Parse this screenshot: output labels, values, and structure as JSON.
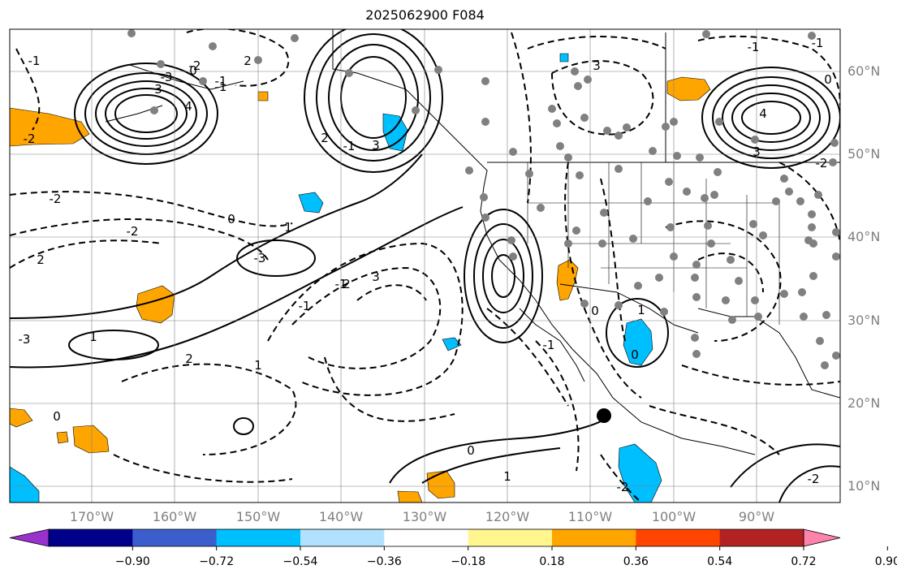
{
  "title": "2025062900 F084",
  "map": {
    "lon_range": [
      -180,
      -80
    ],
    "lat_range": [
      8,
      65
    ],
    "lon_labels": [
      "170°W",
      "160°W",
      "150°W",
      "140°W",
      "130°W",
      "120°W",
      "110°W",
      "100°W",
      "90°W"
    ],
    "lat_labels": [
      "60°N",
      "50°N",
      "40°N",
      "30°N",
      "20°N",
      "10°N"
    ],
    "contour_labels": [
      "3",
      "4",
      "0",
      "-1",
      "2",
      "-1",
      "2",
      "3",
      "1",
      "0",
      "-2",
      "2",
      "-2",
      "-3",
      "1",
      "2",
      "1",
      "0",
      "-1",
      "-1",
      "0",
      "1",
      "0",
      "1",
      "-2",
      "4",
      "3",
      "-2",
      "0",
      "-1",
      "-1",
      "0",
      "-1",
      "3",
      "3",
      "2",
      "-3",
      "-2",
      "-3",
      "-2",
      "-1",
      "-1",
      "-2"
    ],
    "colors": {
      "positive_fill": "#ffa500",
      "negative_fill": "#00bfff",
      "contour": "#000000",
      "marker": "#808080"
    }
  },
  "colorbar": {
    "colors": [
      "#9932cc",
      "#00008b",
      "#3a5fcd",
      "#00bfff",
      "#b0e2ff",
      "#ffffff",
      "#fff68f",
      "#ffa500",
      "#ff4500",
      "#b22222",
      "#ff82ab"
    ],
    "ticks": [
      "−0.90",
      "−0.72",
      "−0.54",
      "−0.36",
      "−0.18",
      "0.18",
      "0.36",
      "0.54",
      "0.72",
      "0.90"
    ]
  }
}
